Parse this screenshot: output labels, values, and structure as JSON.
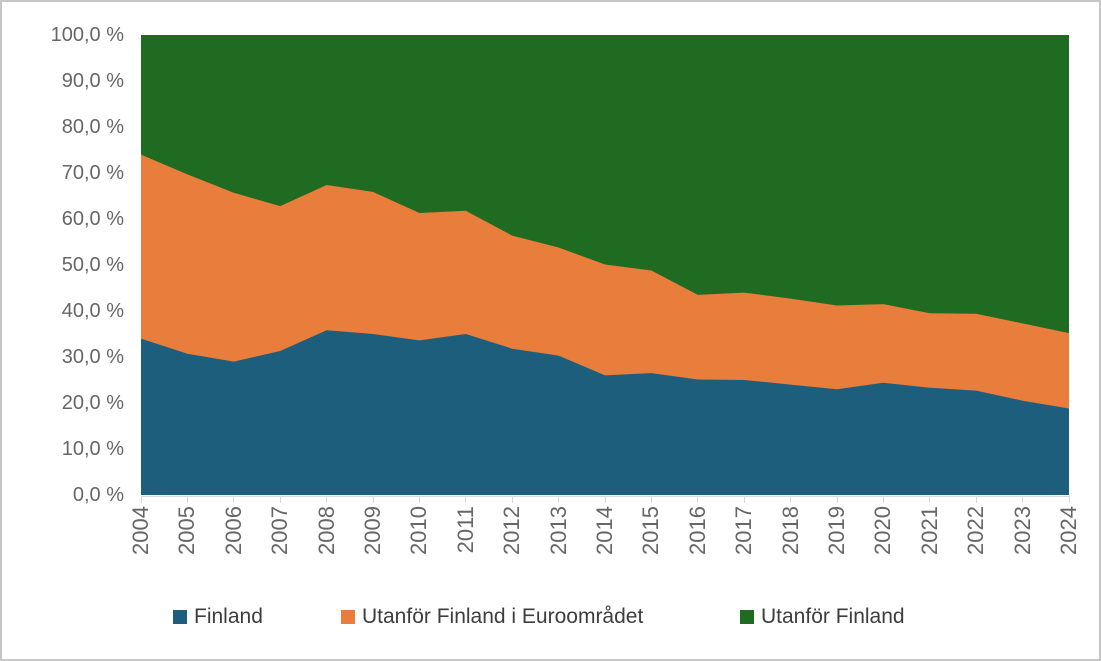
{
  "chart_data": {
    "type": "area",
    "stacked": true,
    "percent_stacked": true,
    "x": [
      "2004",
      "2005",
      "2006",
      "2007",
      "2008",
      "2009",
      "2010",
      "2011",
      "2012",
      "2013",
      "2014",
      "2015",
      "2016",
      "2017",
      "2018",
      "2019",
      "2020",
      "2021",
      "2022",
      "2023",
      "2024"
    ],
    "series": [
      {
        "name": "Finland",
        "color": "#1d5e7c",
        "values": [
          34.0,
          30.7,
          29.0,
          31.3,
          35.8,
          35.0,
          33.6,
          35.0,
          31.8,
          30.3,
          26.0,
          26.5,
          25.1,
          25.0,
          24.0,
          23.0,
          24.4,
          23.3,
          22.7,
          20.5,
          18.8
        ]
      },
      {
        "name": "Utanför Finland i Euroområdet",
        "color": "#e87d3c",
        "values": [
          40.0,
          39.0,
          36.7,
          31.5,
          31.6,
          30.9,
          27.7,
          26.8,
          24.6,
          23.5,
          24.1,
          22.3,
          18.4,
          19.0,
          18.7,
          18.2,
          17.1,
          16.2,
          16.7,
          16.8,
          16.4
        ]
      },
      {
        "name": "Utanför Finland",
        "color": "#1e6b21",
        "values": [
          26.0,
          30.3,
          34.3,
          37.2,
          32.6,
          34.1,
          38.7,
          38.2,
          43.6,
          46.2,
          49.9,
          51.2,
          56.5,
          56.0,
          57.3,
          58.8,
          58.5,
          60.5,
          60.6,
          62.7,
          64.8
        ]
      }
    ],
    "ylim": [
      0,
      100
    ],
    "ytick_labels": [
      "0,0 %",
      "10,0 %",
      "20,0 %",
      "30,0 %",
      "40,0 %",
      "50,0 %",
      "60,0 %",
      "70,0 %",
      "80,0 %",
      "90,0 %",
      "100,0 %"
    ],
    "legend_position": "bottom",
    "grid": false,
    "axis_line_color": "#d9d9d9",
    "tick_label_color": "#666666",
    "legend_text_color": "#3d3d3d"
  }
}
